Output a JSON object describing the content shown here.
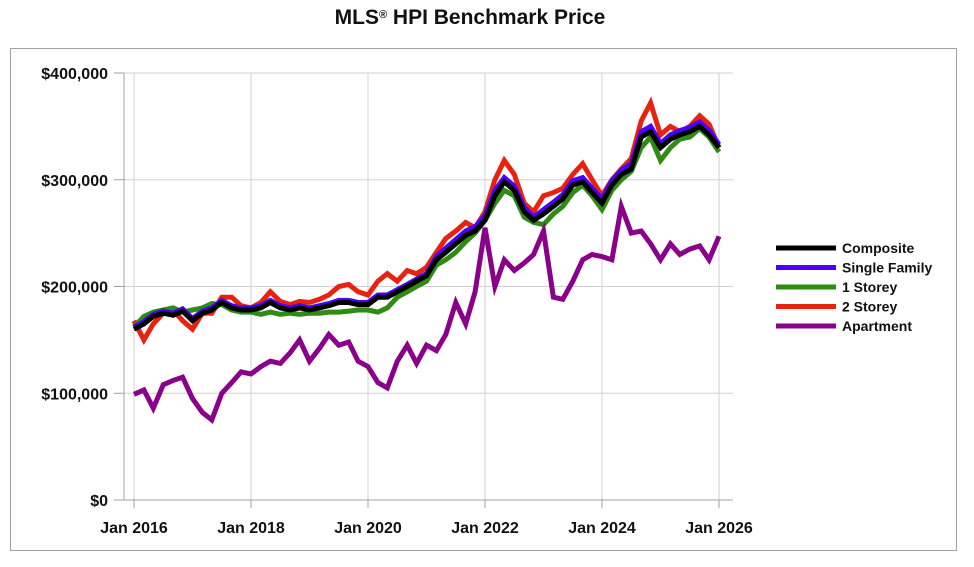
{
  "chart_data": {
    "type": "line",
    "title": "MLS® HPI Benchmark Price",
    "title_main": "MLS",
    "title_mark": "®",
    "title_rest": " HPI Benchmark Price",
    "xlabel": "",
    "ylabel": "",
    "xlim": [
      2016.0,
      2026.0
    ],
    "ylim": [
      0,
      400000
    ],
    "grid": true,
    "legend_position": "right",
    "x_ticks": [
      {
        "value": 2016,
        "label": "Jan 2016"
      },
      {
        "value": 2018,
        "label": "Jan 2018"
      },
      {
        "value": 2020,
        "label": "Jan 2020"
      },
      {
        "value": 2022,
        "label": "Jan 2022"
      },
      {
        "value": 2024,
        "label": "Jan 2024"
      },
      {
        "value": 2026,
        "label": "Jan 2026"
      }
    ],
    "y_ticks": [
      {
        "value": 0,
        "label": "$0"
      },
      {
        "value": 100000,
        "label": "$100,000"
      },
      {
        "value": 200000,
        "label": "$200,000"
      },
      {
        "value": 300000,
        "label": "$300,000"
      },
      {
        "value": 400000,
        "label": "$400,000"
      }
    ],
    "x": [
      2016.0,
      2016.17,
      2016.33,
      2016.5,
      2016.67,
      2016.83,
      2017.0,
      2017.17,
      2017.33,
      2017.5,
      2017.67,
      2017.83,
      2018.0,
      2018.17,
      2018.33,
      2018.5,
      2018.67,
      2018.83,
      2019.0,
      2019.17,
      2019.33,
      2019.5,
      2019.67,
      2019.83,
      2020.0,
      2020.17,
      2020.33,
      2020.5,
      2020.67,
      2020.83,
      2021.0,
      2021.17,
      2021.33,
      2021.5,
      2021.67,
      2021.83,
      2022.0,
      2022.17,
      2022.33,
      2022.5,
      2022.67,
      2022.83,
      2023.0,
      2023.17,
      2023.33,
      2023.5,
      2023.67,
      2023.83,
      2024.0,
      2024.17,
      2024.33,
      2024.5,
      2024.67,
      2024.83,
      2025.0,
      2025.17,
      2025.33,
      2025.5,
      2025.67,
      2025.83,
      2026.0
    ],
    "series": [
      {
        "name": "Composite",
        "color": "#000000",
        "values": [
          160000,
          165000,
          172000,
          175000,
          173000,
          177000,
          168000,
          175000,
          178000,
          185000,
          180000,
          178000,
          178000,
          180000,
          185000,
          180000,
          178000,
          180000,
          178000,
          180000,
          182000,
          185000,
          185000,
          183000,
          183000,
          190000,
          190000,
          195000,
          200000,
          205000,
          210000,
          225000,
          232000,
          240000,
          248000,
          252000,
          262000,
          285000,
          298000,
          290000,
          270000,
          262000,
          268000,
          275000,
          282000,
          295000,
          298000,
          288000,
          278000,
          295000,
          305000,
          310000,
          340000,
          345000,
          330000,
          338000,
          342000,
          345000,
          350000,
          342000,
          330000
        ]
      },
      {
        "name": "Single Family",
        "color": "#4B00FF",
        "values": [
          162000,
          167000,
          174000,
          177000,
          175000,
          179000,
          170000,
          177000,
          180000,
          187000,
          182000,
          180000,
          180000,
          182000,
          187000,
          182000,
          180000,
          182000,
          180000,
          182000,
          184000,
          187000,
          187000,
          185000,
          185000,
          192000,
          192000,
          197000,
          202000,
          207000,
          212000,
          228000,
          236000,
          244000,
          252000,
          256000,
          266000,
          290000,
          302000,
          294000,
          274000,
          265000,
          272000,
          279000,
          286000,
          299000,
          302000,
          292000,
          282000,
          299000,
          309000,
          315000,
          345000,
          350000,
          334000,
          342000,
          346000,
          349000,
          354000,
          346000,
          333000
        ]
      },
      {
        "name": "1 Storey",
        "color": "#2E8B14",
        "values": [
          162000,
          172000,
          176000,
          178000,
          180000,
          176000,
          178000,
          180000,
          184000,
          183000,
          178000,
          176000,
          176000,
          174000,
          176000,
          174000,
          175000,
          174000,
          175000,
          175000,
          176000,
          176000,
          177000,
          178000,
          178000,
          176000,
          180000,
          190000,
          195000,
          200000,
          205000,
          220000,
          225000,
          232000,
          242000,
          250000,
          262000,
          278000,
          290000,
          285000,
          265000,
          260000,
          258000,
          268000,
          275000,
          288000,
          295000,
          285000,
          272000,
          290000,
          300000,
          308000,
          330000,
          340000,
          318000,
          330000,
          338000,
          340000,
          348000,
          340000,
          326000
        ]
      },
      {
        "name": "2 Storey",
        "color": "#E8220E",
        "values": [
          168000,
          150000,
          165000,
          175000,
          178000,
          168000,
          160000,
          175000,
          175000,
          190000,
          190000,
          182000,
          180000,
          185000,
          195000,
          186000,
          183000,
          186000,
          185000,
          188000,
          192000,
          200000,
          202000,
          195000,
          192000,
          205000,
          212000,
          205000,
          215000,
          212000,
          218000,
          232000,
          245000,
          252000,
          260000,
          255000,
          270000,
          300000,
          318000,
          305000,
          278000,
          270000,
          285000,
          288000,
          292000,
          305000,
          315000,
          300000,
          285000,
          300000,
          310000,
          320000,
          355000,
          372000,
          342000,
          350000,
          345000,
          350000,
          360000,
          352000,
          330000
        ]
      },
      {
        "name": "Apartment",
        "color": "#8B008B",
        "values": [
          99000,
          103000,
          86000,
          108000,
          112000,
          115000,
          95000,
          82000,
          75000,
          100000,
          110000,
          120000,
          118000,
          125000,
          130000,
          128000,
          138000,
          150000,
          130000,
          142000,
          155000,
          145000,
          148000,
          130000,
          125000,
          110000,
          105000,
          130000,
          145000,
          128000,
          145000,
          140000,
          155000,
          185000,
          165000,
          195000,
          255000,
          200000,
          225000,
          215000,
          222000,
          230000,
          252000,
          190000,
          188000,
          205000,
          225000,
          230000,
          228000,
          225000,
          275000,
          250000,
          252000,
          240000,
          225000,
          240000,
          230000,
          235000,
          238000,
          225000,
          247000
        ]
      }
    ]
  }
}
